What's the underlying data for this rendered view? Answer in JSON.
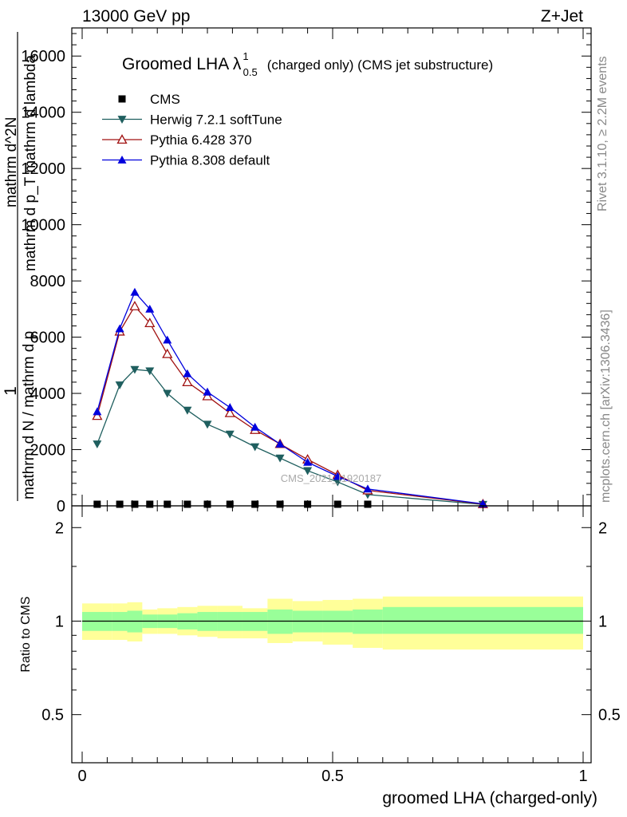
{
  "header": {
    "left_label": "13000 GeV pp",
    "right_label": "Z+Jet"
  },
  "side_labels": {
    "rivet": "Rivet 3.1.10, ≥ 2.2M events",
    "mcplots": "mcplots.cern.ch [arXiv:1306.3436]"
  },
  "watermark": "CMS_2021_I1920187",
  "chart_data": [
    {
      "type": "line",
      "title": "Groomed LHA λ",
      "title_sup": "1",
      "title_sub": "0.5",
      "title_suffix": "(charged only) (CMS jet substructure)",
      "xlabel": "groomed LHA (charged-only)",
      "ylabel_numerator": "1",
      "ylabel_over": "mathrm d N / mathrm d p",
      "ylabel_main": "mathrm d N / mathrm d p_T mathrm d lambda",
      "ylabel_upper": "mathrm d^2N",
      "ylabel_stack": [
        "mathrm d^2N",
        "mathrm d p_T mathrm d lambda"
      ],
      "xlim": [
        0,
        1
      ],
      "ylim": [
        0,
        17000
      ],
      "x_ticks": [],
      "y_ticks": [
        {
          "v": 0,
          "label": "0"
        },
        {
          "v": 2000,
          "label": "2000"
        },
        {
          "v": 4000,
          "label": "4000"
        },
        {
          "v": 6000,
          "label": "6000"
        },
        {
          "v": 8000,
          "label": "8000"
        },
        {
          "v": 10000,
          "label": "10000"
        },
        {
          "v": 12000,
          "label": "12000"
        },
        {
          "v": 14000,
          "label": "14000"
        },
        {
          "v": 16000,
          "label": "16000"
        }
      ],
      "legend_position": "top-left",
      "x": [
        0.03,
        0.075,
        0.105,
        0.135,
        0.17,
        0.21,
        0.25,
        0.295,
        0.345,
        0.395,
        0.45,
        0.51,
        0.57,
        0.8
      ],
      "series": [
        {
          "name": "CMS",
          "marker": "square",
          "color": "#000000",
          "values": [
            40,
            40,
            40,
            40,
            40,
            40,
            40,
            40,
            40,
            40,
            40,
            40,
            40,
            null
          ]
        },
        {
          "name": "Herwig 7.2.1 softTune",
          "marker": "triangle-down",
          "color": "#1f5f5f",
          "values": [
            2200,
            4300,
            4850,
            4800,
            4000,
            3400,
            2900,
            2550,
            2100,
            1700,
            1250,
            850,
            400,
            50
          ]
        },
        {
          "name": "Pythia 6.428 370",
          "marker": "triangle-up-open",
          "color": "#a01010",
          "values": [
            3200,
            6200,
            7100,
            6500,
            5400,
            4400,
            3900,
            3300,
            2700,
            2200,
            1650,
            1100,
            550,
            60
          ]
        },
        {
          "name": "Pythia 8.308 default",
          "marker": "triangle-up",
          "color": "#0000dd",
          "values": [
            3350,
            6300,
            7600,
            7000,
            5900,
            4700,
            4050,
            3500,
            2800,
            2200,
            1550,
            1050,
            600,
            70
          ]
        }
      ]
    },
    {
      "type": "area",
      "ylabel": "Ratio to CMS",
      "xlim": [
        0,
        1
      ],
      "ylim": [
        0.35,
        2.35
      ],
      "x_ticks": [
        {
          "v": 0,
          "label": "0"
        },
        {
          "v": 0.5,
          "label": "0.5"
        },
        {
          "v": 1,
          "label": "1"
        }
      ],
      "y_ticks": [
        {
          "v": 0.5,
          "label": "0.5"
        },
        {
          "v": 1,
          "label": "1"
        },
        {
          "v": 2,
          "label": "2"
        }
      ],
      "bin_edges": [
        0,
        0.06,
        0.09,
        0.12,
        0.15,
        0.19,
        0.23,
        0.27,
        0.32,
        0.37,
        0.42,
        0.48,
        0.54,
        0.6,
        1.0
      ],
      "stat_band": {
        "color": "#99ff99",
        "lo": [
          0.93,
          0.93,
          0.92,
          0.95,
          0.95,
          0.94,
          0.93,
          0.93,
          0.93,
          0.91,
          0.92,
          0.92,
          0.91,
          0.91
        ],
        "hi": [
          1.07,
          1.07,
          1.08,
          1.05,
          1.05,
          1.06,
          1.07,
          1.07,
          1.07,
          1.09,
          1.08,
          1.08,
          1.09,
          1.11
        ]
      },
      "syst_band": {
        "color": "#ffff99",
        "lo": [
          0.87,
          0.87,
          0.86,
          0.91,
          0.91,
          0.9,
          0.89,
          0.88,
          0.88,
          0.85,
          0.86,
          0.84,
          0.82,
          0.81
        ],
        "hi": [
          1.14,
          1.14,
          1.15,
          1.09,
          1.1,
          1.11,
          1.12,
          1.12,
          1.1,
          1.18,
          1.16,
          1.17,
          1.18,
          1.2
        ]
      },
      "reference_line": 1
    }
  ]
}
